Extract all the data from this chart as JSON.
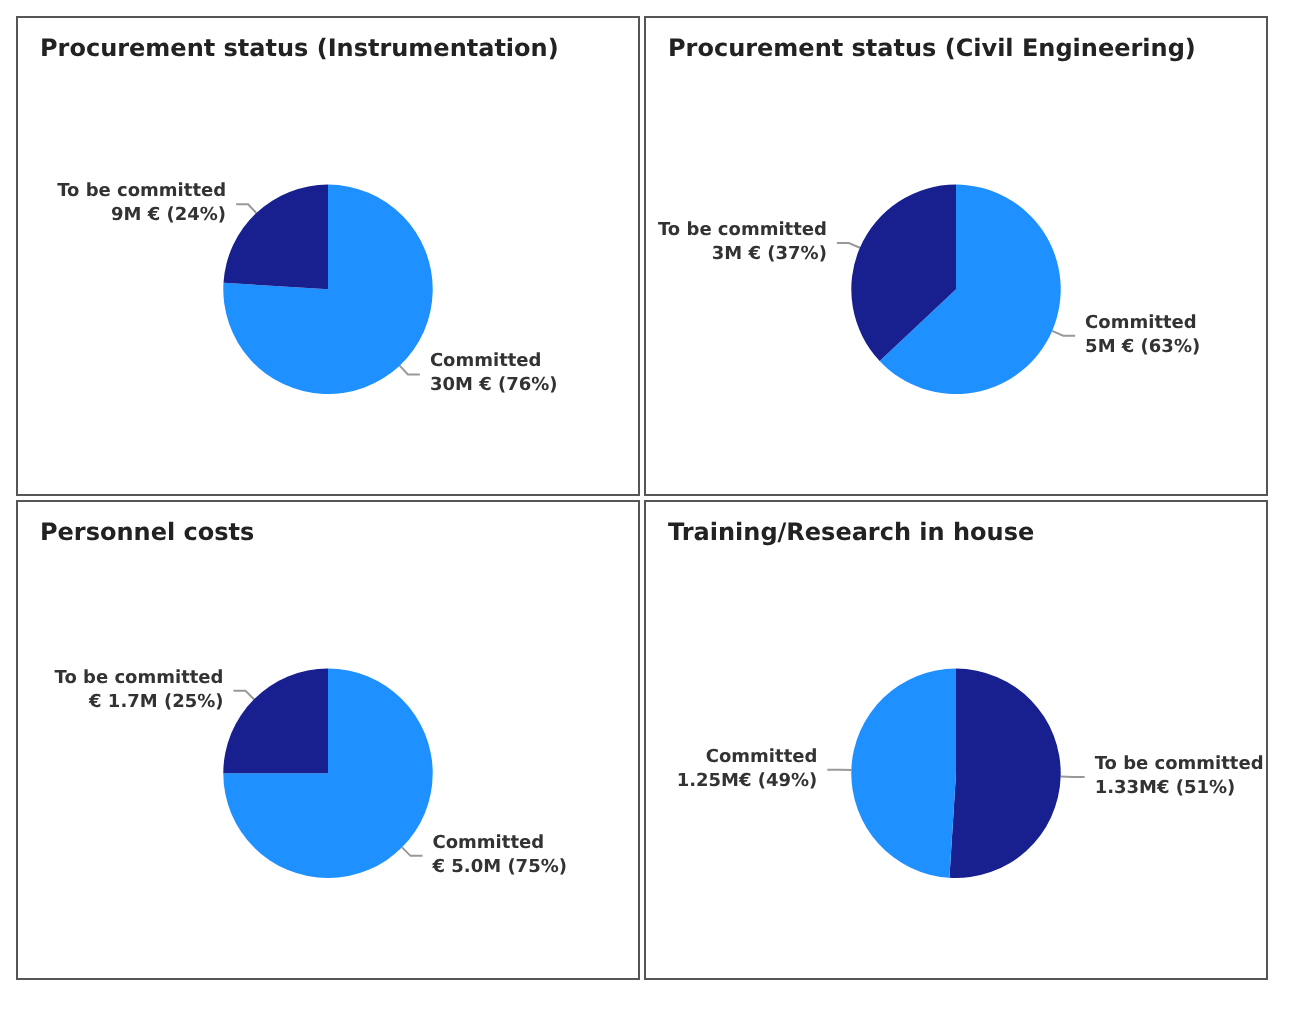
{
  "chart_data": [
    {
      "type": "pie",
      "title": "Procurement status (Instrumentation)",
      "categories": [
        "Committed",
        "To be committed"
      ],
      "values": [
        76,
        24
      ],
      "value_labels": [
        "30M € (76%)",
        "9M € (24%)"
      ],
      "colors": [
        "#1e90ff",
        "#18208f"
      ],
      "legend": false
    },
    {
      "type": "pie",
      "title": "Procurement status (Civil Engineering)",
      "categories": [
        "Committed",
        "To be committed"
      ],
      "values": [
        63,
        37
      ],
      "value_labels": [
        "5M € (63%)",
        "3M € (37%)"
      ],
      "colors": [
        "#1e90ff",
        "#18208f"
      ],
      "legend": false
    },
    {
      "type": "pie",
      "title": "Personnel costs",
      "categories": [
        "Committed",
        "To be committed"
      ],
      "values": [
        75,
        25
      ],
      "value_labels": [
        "€ 5.0M (75%)",
        "€ 1.7M (25%)"
      ],
      "colors": [
        "#1e90ff",
        "#18208f"
      ],
      "legend": false
    },
    {
      "type": "pie",
      "title": "Training/Research in house",
      "categories": [
        "To be committed",
        "Committed"
      ],
      "values": [
        51,
        49
      ],
      "value_labels": [
        "1.33M€ (51%)",
        "1.25M€ (49%)"
      ],
      "colors": [
        "#18208f",
        "#1e90ff"
      ],
      "legend": false
    }
  ]
}
